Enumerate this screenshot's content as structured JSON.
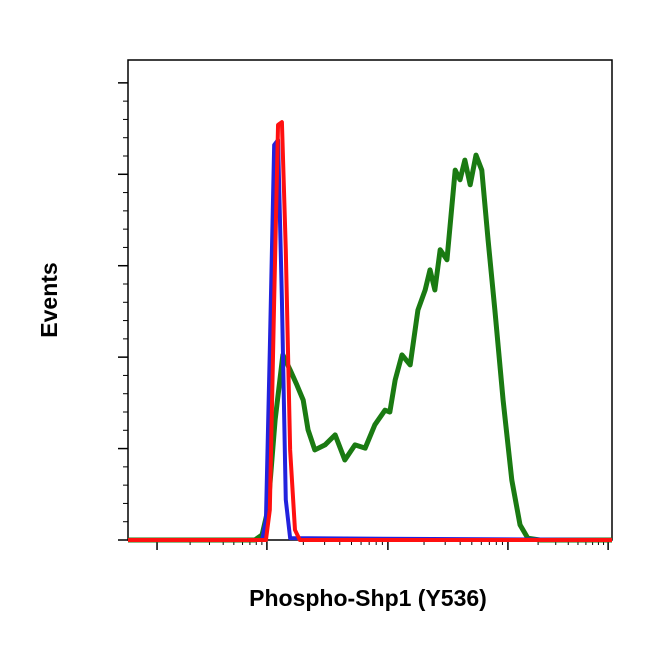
{
  "chart_data": {
    "type": "line",
    "xlabel": "Phospho-Shp1 (Y536)",
    "ylabel": "Events",
    "xlim": [
      0,
      100
    ],
    "ylim": [
      0,
      105
    ],
    "xticks": [
      6,
      28.7,
      53.7,
      78.5,
      99.2
    ],
    "yticks": [
      0,
      20,
      40,
      60,
      80,
      100
    ],
    "series": [
      {
        "color": "#1a7a12",
        "x": [
          0,
          26.2,
          27.7,
          28.9,
          30.4,
          32.0,
          33.5,
          34.9,
          36.2,
          37.2,
          38.6,
          40.7,
          42.8,
          44.8,
          46.9,
          49.0,
          51.0,
          53.1,
          54.1,
          55.2,
          56.6,
          58.3,
          59.9,
          61.4,
          62.4,
          63.4,
          64.5,
          65.9,
          67.6,
          68.6,
          69.6,
          70.7,
          71.9,
          73.1,
          74.4,
          75.8,
          77.5,
          79.3,
          81.0,
          82.6,
          85.1,
          100
        ],
        "values": [
          0,
          0,
          1.1,
          6.6,
          26.3,
          40.5,
          37.2,
          33.9,
          30.6,
          24.1,
          19.7,
          20.8,
          23.0,
          17.5,
          20.8,
          20.1,
          25.2,
          28.4,
          28.0,
          35.0,
          40.5,
          38.3,
          50.3,
          54.7,
          59.1,
          54.7,
          63.5,
          61.3,
          80.9,
          78.8,
          83.1,
          77.7,
          84.2,
          80.9,
          65.6,
          50.3,
          30.6,
          13.1,
          3.3,
          0.4,
          0,
          0
        ]
      },
      {
        "color": "#2222dd",
        "x": [
          0,
          27.7,
          28.5,
          29.3,
          30.2,
          31.0,
          31.8,
          32.6,
          33.5,
          100
        ],
        "values": [
          0,
          0,
          4.4,
          41.6,
          86.4,
          87.5,
          52.5,
          8.8,
          0.4,
          0
        ]
      },
      {
        "color": "#ff1010",
        "x": [
          0,
          28.5,
          29.3,
          30.2,
          31.0,
          31.8,
          32.6,
          33.5,
          34.5,
          35.5,
          100
        ],
        "values": [
          0,
          0,
          6.6,
          52.5,
          90.8,
          91.4,
          63.5,
          19.7,
          2.2,
          0,
          0
        ]
      }
    ]
  }
}
